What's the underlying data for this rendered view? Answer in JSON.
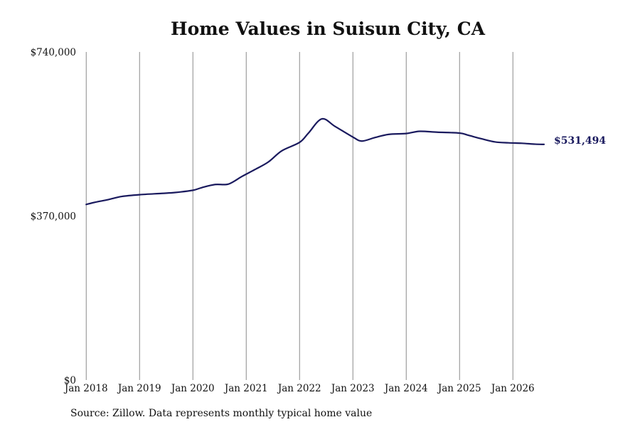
{
  "chart_data": {
    "type": "line",
    "title": "Home Values in Suisun City, CA",
    "source_note": "Source: Zillow. Data represents monthly typical home value",
    "xlabel": "",
    "ylabel": "",
    "x_ticks": [
      "Jan 2018",
      "Jan 2019",
      "Jan 2020",
      "Jan 2021",
      "Jan 2022",
      "Jan 2023",
      "Jan 2024",
      "Jan 2025",
      "Jan 2026"
    ],
    "y_ticks": [
      {
        "value": 0,
        "label": "$0"
      },
      {
        "value": 370000,
        "label": "$370,000"
      },
      {
        "value": 740000,
        "label": "$740,000"
      }
    ],
    "ylim": [
      0,
      740000
    ],
    "xlim": [
      "2017-12",
      "2026-12"
    ],
    "grid": {
      "vertical": true,
      "horizontal": false
    },
    "end_label": "$531,494",
    "series": [
      {
        "color": "#1a1a5e",
        "points": [
          [
            "2018-01",
            396000
          ],
          [
            "2018-03",
            401000
          ],
          [
            "2018-06",
            407000
          ],
          [
            "2018-09",
            414000
          ],
          [
            "2019-01",
            418000
          ],
          [
            "2019-06",
            421000
          ],
          [
            "2019-09",
            423000
          ],
          [
            "2020-01",
            428000
          ],
          [
            "2020-03",
            434000
          ],
          [
            "2020-06",
            441000
          ],
          [
            "2020-09",
            442000
          ],
          [
            "2020-12",
            459000
          ],
          [
            "2021-03",
            475000
          ],
          [
            "2021-06",
            492000
          ],
          [
            "2021-09",
            517000
          ],
          [
            "2022-01",
            536000
          ],
          [
            "2022-03",
            557000
          ],
          [
            "2022-06",
            589000
          ],
          [
            "2022-09",
            572000
          ],
          [
            "2023-01",
            548000
          ],
          [
            "2023-03",
            539000
          ],
          [
            "2023-06",
            547000
          ],
          [
            "2023-09",
            554000
          ],
          [
            "2024-01",
            556000
          ],
          [
            "2024-04",
            561000
          ],
          [
            "2024-08",
            559000
          ],
          [
            "2025-01",
            557000
          ],
          [
            "2025-03",
            552000
          ],
          [
            "2025-06",
            544000
          ],
          [
            "2025-09",
            537000
          ],
          [
            "2025-12",
            535000
          ],
          [
            "2026-03",
            534000
          ],
          [
            "2026-06",
            532000
          ],
          [
            "2026-08",
            531494
          ]
        ]
      }
    ]
  }
}
